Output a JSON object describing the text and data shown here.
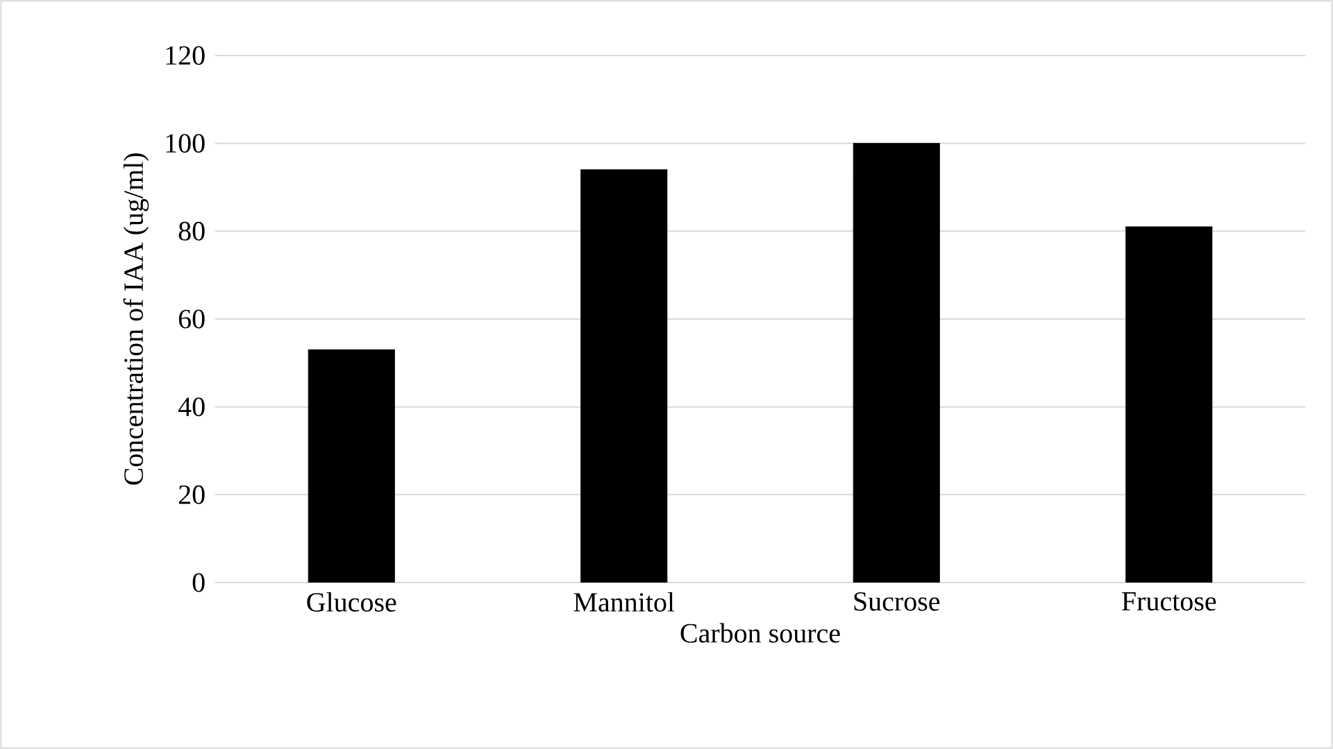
{
  "chart_data": {
    "type": "bar",
    "xlabel": "Carbon source",
    "ylabel": "Concentration of IAA (ug/ml)",
    "categories": [
      "Glucose",
      "Mannitol",
      "Sucrose",
      "Fructose"
    ],
    "values": [
      53,
      94,
      100,
      81
    ],
    "color": "#000000",
    "ylim": [
      0,
      120
    ],
    "yticks": [
      0,
      20,
      40,
      60,
      80,
      100,
      120
    ],
    "grid": "y"
  }
}
